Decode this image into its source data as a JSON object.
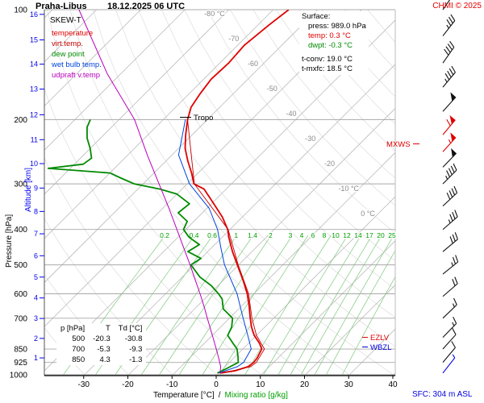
{
  "header": {
    "station": "Praha-Libus",
    "datetime": "18.12.2025 06 UTC",
    "copyright": "CHMI © 2025",
    "chart_type": "SKEW-T"
  },
  "legend": {
    "items": [
      {
        "label": "temperature",
        "color": "#e00000"
      },
      {
        "label": "virt.temp.",
        "color": "#c00000"
      },
      {
        "label": "dew point",
        "color": "#008a00"
      },
      {
        "label": "wet bulb temp.",
        "color": "#0044dd"
      },
      {
        "label": "udpraft v.temp",
        "color": "#bb00bb"
      }
    ]
  },
  "info_panel": {
    "surface_title": "Surface:",
    "press": "press: 989.0 hPa",
    "temp": "temp: 0.3 °C",
    "dwpt": "dwpt: -0.3 °C",
    "tconv": "t-conv: 19.0 °C",
    "tmxfc": "t-mxfc: 18.5 °C"
  },
  "markers": {
    "tropo": "Tropo",
    "mxws": "MXWS",
    "ezlv": "EZLV",
    "wbzl": "WBZL",
    "sfc": "SFC: 304 m ASL"
  },
  "table": {
    "headers": [
      "p [hPa]",
      "T",
      "Td [°C]"
    ],
    "rows": [
      [
        "500",
        "-20.3",
        "-30.8"
      ],
      [
        "700",
        "-5.3",
        "-9.3"
      ],
      [
        "850",
        "4.3",
        "-1.3"
      ]
    ]
  },
  "axes": {
    "pressure_label": "Pressure [hPa]",
    "altitude_label": "Altitude [km]",
    "x_label_temp": "Temperature [°C]",
    "x_label_sep": "/",
    "x_label_mix": "Mixing ratio [g/kg]",
    "pressure_ticks": [
      100,
      200,
      300,
      400,
      500,
      600,
      700,
      850,
      925,
      1000
    ],
    "temp_ticks": [
      -30,
      -20,
      -10,
      0,
      10,
      20,
      30,
      40
    ],
    "altitude_ticks": [
      {
        "km": 16,
        "hpa": 103
      },
      {
        "km": 15,
        "hpa": 121
      },
      {
        "km": 14,
        "hpa": 141
      },
      {
        "km": 13,
        "hpa": 165
      },
      {
        "km": 12,
        "hpa": 194
      },
      {
        "km": 11,
        "hpa": 227
      },
      {
        "km": 10,
        "hpa": 264
      },
      {
        "km": 9,
        "hpa": 308
      },
      {
        "km": 8,
        "hpa": 357
      },
      {
        "km": 7,
        "hpa": 411
      },
      {
        "km": 6,
        "hpa": 472
      },
      {
        "km": 5,
        "hpa": 540
      },
      {
        "km": 4,
        "hpa": 616
      },
      {
        "km": 3,
        "hpa": 701
      },
      {
        "km": 2,
        "hpa": 795
      },
      {
        "km": 1,
        "hpa": 899
      }
    ],
    "isotherm_labels": [
      {
        "t": -80,
        "text": "-80 °C"
      },
      {
        "t": -70,
        "text": "-70"
      },
      {
        "t": -60,
        "text": "-60"
      },
      {
        "t": -50,
        "text": "-50"
      },
      {
        "t": -40,
        "text": "-40"
      },
      {
        "t": -30,
        "text": "-30"
      },
      {
        "t": -20,
        "text": "-20"
      },
      {
        "t": -10,
        "text": "-10 °C"
      },
      {
        "t": 0,
        "text": "0 °C"
      }
    ],
    "mixing_ratio_values": [
      0.2,
      0.4,
      0.6,
      1,
      1.4,
      2,
      3,
      4,
      6,
      8,
      10,
      12,
      14,
      17,
      20,
      25
    ]
  },
  "style": {
    "red": "#e00000",
    "green": "#008a00",
    "blue": "#0000dd",
    "magenta": "#bb00bb",
    "axis_blue": "#0000ee",
    "grid_gray": "#a8a8a8",
    "isotherm_gray": "#bdbdbd",
    "adiabat_gray": "#dcdcdc",
    "mixing_line_green": "#8cce8c",
    "mixing_label_green": "#00a000",
    "barb_black": "#111111",
    "label_gray": "#8a8a8a"
  },
  "chart_data": {
    "type": "line",
    "title": "SKEW-T",
    "xlabel": "Temperature [°C]",
    "ylabel": "Pressure [hPa]",
    "xlim": [
      -40,
      40
    ],
    "ylim": [
      1050,
      100
    ],
    "grid": true,
    "series": [
      {
        "name": "temperature",
        "color": "#e00000",
        "width": 1.8,
        "points": [
          [
            989,
            0.3
          ],
          [
            975,
            3.2
          ],
          [
            950,
            5.2
          ],
          [
            925,
            5.5
          ],
          [
            900,
            5.3
          ],
          [
            850,
            4.3
          ],
          [
            820,
            2.5
          ],
          [
            780,
            -0.5
          ],
          [
            740,
            -3.0
          ],
          [
            700,
            -5.3
          ],
          [
            650,
            -8.2
          ],
          [
            600,
            -11.5
          ],
          [
            550,
            -15.6
          ],
          [
            500,
            -20.3
          ],
          [
            460,
            -24.4
          ],
          [
            420,
            -28.5
          ],
          [
            400,
            -30.5
          ],
          [
            370,
            -34.5
          ],
          [
            340,
            -39.5
          ],
          [
            310,
            -45.0
          ],
          [
            300,
            -48.5
          ],
          [
            280,
            -51.5
          ],
          [
            260,
            -55.0
          ],
          [
            240,
            -58.5
          ],
          [
            220,
            -61.5
          ],
          [
            200,
            -64.5
          ],
          [
            185,
            -66.5
          ],
          [
            170,
            -67.5
          ],
          [
            155,
            -68.3
          ],
          [
            140,
            -68.0
          ],
          [
            125,
            -68.5
          ],
          [
            110,
            -67.5
          ],
          [
            100,
            -66.5
          ]
        ]
      },
      {
        "name": "virt.temp.",
        "color": "#c00000",
        "width": 0.9,
        "points": [
          [
            989,
            0.9
          ],
          [
            950,
            5.8
          ],
          [
            925,
            6.1
          ],
          [
            850,
            4.9
          ],
          [
            780,
            0.0
          ],
          [
            700,
            -4.9
          ],
          [
            600,
            -11.2
          ],
          [
            500,
            -20.1
          ],
          [
            400,
            -30.4
          ],
          [
            300,
            -48.4
          ],
          [
            200,
            -64.5
          ]
        ]
      },
      {
        "name": "dew point",
        "color": "#008a00",
        "width": 1.8,
        "points": [
          [
            989,
            -0.3
          ],
          [
            960,
            0.8
          ],
          [
            925,
            2.0
          ],
          [
            900,
            1.0
          ],
          [
            850,
            -1.3
          ],
          [
            820,
            -3.5
          ],
          [
            780,
            -6.5
          ],
          [
            740,
            -7.5
          ],
          [
            700,
            -9.3
          ],
          [
            660,
            -13.5
          ],
          [
            620,
            -16.0
          ],
          [
            600,
            -18.0
          ],
          [
            570,
            -21.5
          ],
          [
            540,
            -26.0
          ],
          [
            500,
            -30.8
          ],
          [
            480,
            -30.0
          ],
          [
            460,
            -34.5
          ],
          [
            440,
            -33.5
          ],
          [
            420,
            -37.5
          ],
          [
            400,
            -40.5
          ],
          [
            380,
            -41.5
          ],
          [
            360,
            -45.5
          ],
          [
            340,
            -45.0
          ],
          [
            320,
            -50.0
          ],
          [
            310,
            -55.0
          ],
          [
            300,
            -62.0
          ],
          [
            290,
            -66.0
          ],
          [
            280,
            -70.0
          ],
          [
            272,
            -85.0
          ],
          [
            265,
            -78.0
          ],
          [
            255,
            -77.5
          ],
          [
            240,
            -80.0
          ],
          [
            225,
            -83.0
          ],
          [
            210,
            -85.5
          ],
          [
            200,
            -86.5
          ]
        ]
      },
      {
        "name": "wet bulb temp.",
        "color": "#0044dd",
        "width": 1.0,
        "points": [
          [
            989,
            0.0
          ],
          [
            950,
            2.8
          ],
          [
            925,
            3.2
          ],
          [
            850,
            1.9
          ],
          [
            800,
            -0.8
          ],
          [
            700,
            -6.9
          ],
          [
            600,
            -13.8
          ],
          [
            500,
            -23.2
          ],
          [
            450,
            -27.8
          ],
          [
            400,
            -32.8
          ],
          [
            350,
            -39.5
          ],
          [
            300,
            -49.5
          ],
          [
            250,
            -58.5
          ],
          [
            200,
            -65.0
          ]
        ]
      },
      {
        "name": "udpraft v.temp",
        "color": "#bb00bb",
        "width": 1.0,
        "points": [
          [
            989,
            0.3
          ],
          [
            950,
            -1.0
          ],
          [
            900,
            -3.4
          ],
          [
            850,
            -6.0
          ],
          [
            800,
            -8.8
          ],
          [
            750,
            -11.8
          ],
          [
            700,
            -15.0
          ],
          [
            650,
            -18.4
          ],
          [
            600,
            -22.2
          ],
          [
            550,
            -26.4
          ],
          [
            500,
            -31.0
          ],
          [
            450,
            -36.2
          ],
          [
            400,
            -42.0
          ],
          [
            350,
            -48.6
          ],
          [
            300,
            -56.4
          ],
          [
            250,
            -65.6
          ],
          [
            200,
            -76.5
          ],
          [
            150,
            -93.0
          ],
          [
            100,
            -114.0
          ]
        ]
      }
    ],
    "wind_barbs": [
      {
        "hpa": 100,
        "kt": 30,
        "ang": 55
      },
      {
        "hpa": 118,
        "kt": 35,
        "ang": 52
      },
      {
        "hpa": 140,
        "kt": 40,
        "ang": 55
      },
      {
        "hpa": 163,
        "kt": 45,
        "ang": 50
      },
      {
        "hpa": 190,
        "kt": 50,
        "ang": 48
      },
      {
        "hpa": 220,
        "kt": 60,
        "ang": 50,
        "color": "#e00000"
      },
      {
        "hpa": 245,
        "kt": 55,
        "ang": 48,
        "color": "#e00000"
      },
      {
        "hpa": 270,
        "kt": 50,
        "ang": 46
      },
      {
        "hpa": 300,
        "kt": 45,
        "ang": 45
      },
      {
        "hpa": 345,
        "kt": 40,
        "ang": 43
      },
      {
        "hpa": 400,
        "kt": 35,
        "ang": 41
      },
      {
        "hpa": 460,
        "kt": 30,
        "ang": 40
      },
      {
        "hpa": 530,
        "kt": 25,
        "ang": 39
      },
      {
        "hpa": 610,
        "kt": 20,
        "ang": 41
      },
      {
        "hpa": 700,
        "kt": 15,
        "ang": 44
      },
      {
        "hpa": 790,
        "kt": 15,
        "ang": 46
      },
      {
        "hpa": 850,
        "kt": 10,
        "ang": 48
      },
      {
        "hpa": 925,
        "kt": 10,
        "ang": 50
      },
      {
        "hpa": 989,
        "kt": 5,
        "ang": 52,
        "color": "#0000dd"
      }
    ]
  }
}
